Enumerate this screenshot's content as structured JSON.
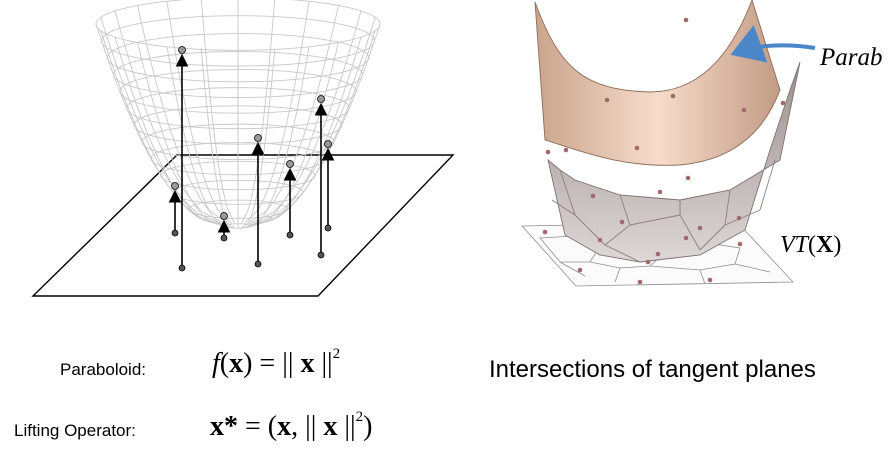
{
  "left_panel": {
    "lifted_points": 7
  },
  "right_panel": {
    "paraboloid_annotation": "Parab",
    "vt_func": "VT",
    "vt_arg": "X"
  },
  "formulas": {
    "paraboloid_label": "Paraboloid:",
    "paraboloid_func": "f",
    "paraboloid_var": "x",
    "paraboloid_norm_var": "x",
    "paraboloid_exp": "2",
    "lifting_label": "Lifting Operator:",
    "lifting_var": "x*",
    "lifting_inner_var": "x",
    "lifting_norm_var": "x",
    "lifting_exp": "2"
  },
  "caption": "Intersections of tangent planes",
  "colors": {
    "mesh": "#c8c8c8",
    "surface": "#e3b89c",
    "cells": "#b8adab",
    "points": "#a06a6a",
    "arrow": "#4a86c8"
  }
}
